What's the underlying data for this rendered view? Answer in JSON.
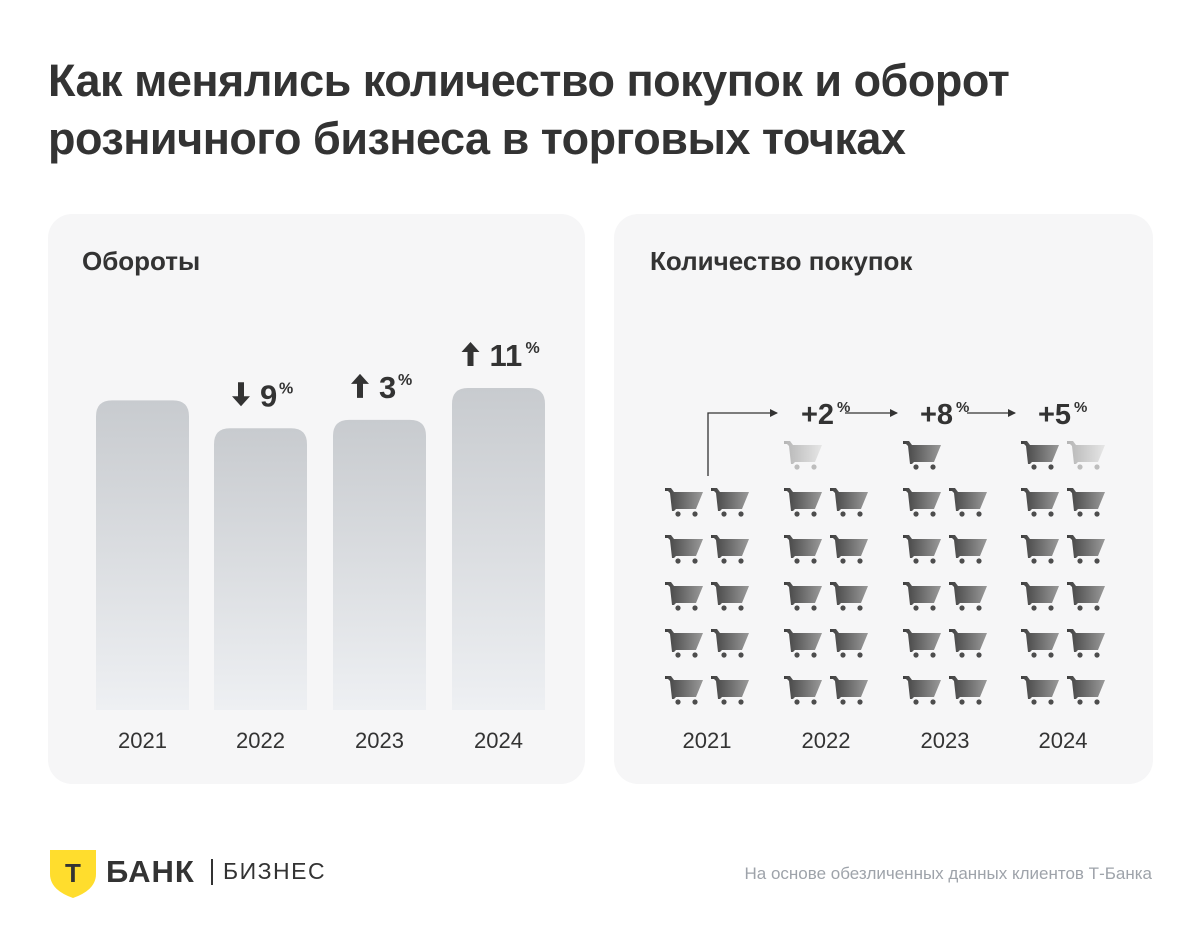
{
  "title": "Как менялись количество покупок и оборот розничного бизнеса в торговых точках",
  "colors": {
    "panel_bg": "#f6f6f7",
    "bar_top": "#c8cbcf",
    "bar_bottom": "#eef0f3",
    "cart_dark": "#4d4d4d",
    "cart_light": "#c4c4c4",
    "text": "#333333",
    "footnote": "#9ea3aa",
    "logo_yellow": "#ffdd2d"
  },
  "chart_data": [
    {
      "type": "bar",
      "title": "Обороты",
      "categories": [
        "2021",
        "2022",
        "2023",
        "2024"
      ],
      "values": [
        100,
        91,
        93.7,
        104
      ],
      "changes": [
        null,
        {
          "direction": "down",
          "value": "9",
          "unit": "%"
        },
        {
          "direction": "up",
          "value": "3",
          "unit": "%"
        },
        {
          "direction": "up",
          "value": "11",
          "unit": "%"
        }
      ],
      "ylim": [
        0,
        104
      ]
    },
    {
      "type": "pictograph",
      "title": "Количество покупок",
      "categories": [
        "2021",
        "2022",
        "2023",
        "2024"
      ],
      "base_icons": 10,
      "extra_icons": [
        null,
        {
          "light": 1
        },
        {
          "dark": 1
        },
        {
          "dark": 1,
          "light": 1
        }
      ],
      "changes": [
        null,
        {
          "value": "+2",
          "unit": "%"
        },
        {
          "value": "+8",
          "unit": "%"
        },
        {
          "value": "+5",
          "unit": "%"
        }
      ]
    }
  ],
  "logo": {
    "bank": "БАНК",
    "business": "БИЗНЕС",
    "shield_letter": "Т"
  },
  "footnote": "На основе обезличенных данных клиентов Т-Банка"
}
